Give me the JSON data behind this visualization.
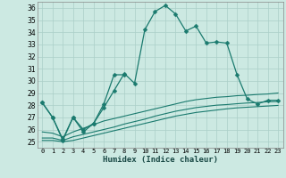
{
  "title": "",
  "xlabel": "Humidex (Indice chaleur)",
  "xlim": [
    -0.5,
    23.5
  ],
  "ylim": [
    24.5,
    36.5
  ],
  "xticks": [
    0,
    1,
    2,
    3,
    4,
    5,
    6,
    7,
    8,
    9,
    10,
    11,
    12,
    13,
    14,
    15,
    16,
    17,
    18,
    19,
    20,
    21,
    22,
    23
  ],
  "yticks": [
    25,
    26,
    27,
    28,
    29,
    30,
    31,
    32,
    33,
    34,
    35,
    36
  ],
  "bg_color": "#cce9e2",
  "grid_color": "#aacfc8",
  "line_color": "#1a7a6e",
  "series": [
    {
      "x": [
        0,
        1,
        2,
        3,
        4,
        5,
        6,
        7,
        8,
        9,
        10,
        11,
        12,
        13,
        14,
        15,
        16,
        17,
        18,
        19,
        20,
        21,
        22,
        23
      ],
      "y": [
        28.2,
        27.0,
        25.1,
        27.0,
        25.8,
        26.5,
        27.8,
        29.2,
        30.6,
        29.8,
        34.2,
        35.7,
        36.2,
        35.5,
        34.1,
        34.5,
        33.1,
        33.2,
        33.1,
        30.5,
        28.5,
        28.1,
        28.4,
        28.4
      ],
      "marker": "D",
      "markersize": 2.5,
      "linewidth": 0.9
    },
    {
      "x": [
        0,
        1,
        2,
        3,
        4,
        5,
        6,
        7,
        8,
        9,
        10,
        11,
        12,
        13,
        14,
        15,
        16,
        17,
        18,
        19,
        20,
        21,
        22,
        23
      ],
      "y": [
        28.2,
        27.0,
        25.2,
        27.0,
        26.0,
        26.5,
        28.1,
        30.5,
        30.5,
        null,
        null,
        null,
        null,
        null,
        null,
        null,
        null,
        null,
        null,
        null,
        null,
        null,
        null,
        null
      ],
      "marker": "D",
      "markersize": 2.5,
      "linewidth": 0.9
    },
    {
      "x": [
        0,
        1,
        2,
        3,
        4,
        5,
        6,
        7,
        8,
        9,
        10,
        11,
        12,
        13,
        14,
        15,
        16,
        17,
        18,
        19,
        20,
        21,
        22,
        23
      ],
      "y": [
        25.8,
        25.7,
        25.4,
        25.8,
        26.1,
        26.4,
        26.7,
        26.9,
        27.1,
        27.3,
        27.5,
        27.7,
        27.9,
        28.1,
        28.3,
        28.45,
        28.55,
        28.65,
        28.7,
        28.78,
        28.82,
        28.88,
        28.92,
        29.0
      ],
      "marker": null,
      "markersize": 0,
      "linewidth": 0.8
    },
    {
      "x": [
        0,
        1,
        2,
        3,
        4,
        5,
        6,
        7,
        8,
        9,
        10,
        11,
        12,
        13,
        14,
        15,
        16,
        17,
        18,
        19,
        20,
        21,
        22,
        23
      ],
      "y": [
        25.3,
        25.3,
        25.1,
        25.4,
        25.6,
        25.8,
        26.0,
        26.2,
        26.45,
        26.65,
        26.85,
        27.1,
        27.3,
        27.5,
        27.65,
        27.8,
        27.9,
        28.0,
        28.05,
        28.12,
        28.18,
        28.22,
        28.28,
        28.3
      ],
      "marker": null,
      "markersize": 0,
      "linewidth": 0.8
    },
    {
      "x": [
        0,
        1,
        2,
        3,
        4,
        5,
        6,
        7,
        8,
        9,
        10,
        11,
        12,
        13,
        14,
        15,
        16,
        17,
        18,
        19,
        20,
        21,
        22,
        23
      ],
      "y": [
        25.1,
        25.1,
        25.0,
        25.1,
        25.3,
        25.5,
        25.7,
        25.9,
        26.1,
        26.3,
        26.5,
        26.7,
        26.9,
        27.1,
        27.25,
        27.4,
        27.5,
        27.6,
        27.7,
        27.78,
        27.83,
        27.88,
        27.93,
        27.98
      ],
      "marker": null,
      "markersize": 0,
      "linewidth": 0.8
    }
  ]
}
